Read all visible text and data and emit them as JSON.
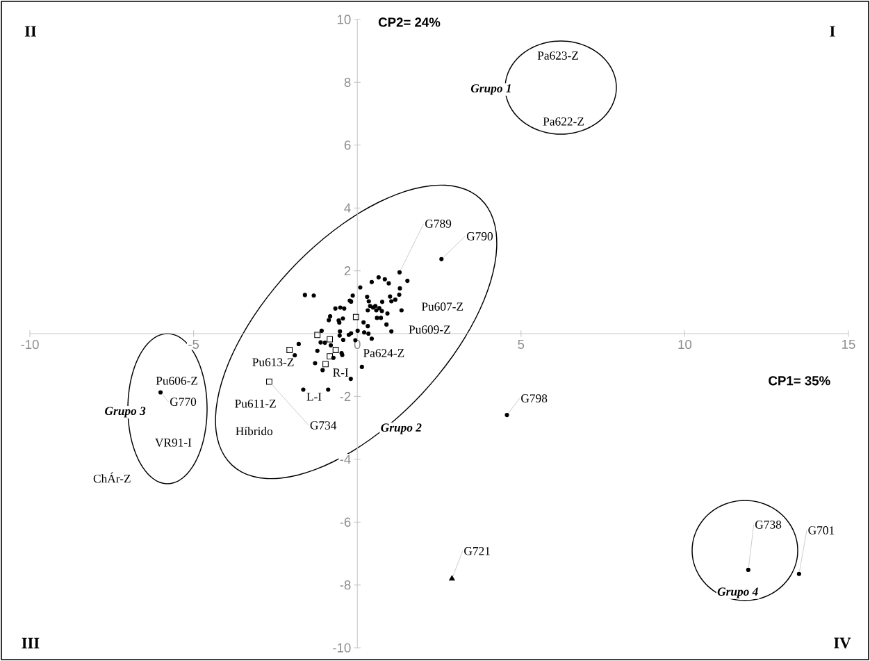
{
  "chart_data": {
    "type": "scatter",
    "xlabel": "CP1= 35%",
    "ylabel": "CP2= 24%",
    "xlim": [
      -10,
      15
    ],
    "ylim": [
      -10,
      10
    ],
    "xticks": [
      -10,
      -5,
      0,
      5,
      10,
      15
    ],
    "yticks": [
      -10,
      -8,
      -6,
      -4,
      -2,
      2,
      4,
      6,
      8,
      10
    ],
    "series": [
      {
        "color": "#000000",
        "marker": "circle",
        "x": [
          1.29,
          2.57,
          -1.6,
          -1.33,
          0.09,
          -0.14,
          -0.23,
          -0.19,
          -0.67,
          -0.52,
          -0.4,
          -0.83,
          -0.87,
          -0.57,
          -0.44,
          -0.55,
          0.44,
          0.65,
          0.84,
          0.96,
          1.53,
          1.3,
          1.28,
          0.3,
          0.35,
          0.76,
          1.0,
          1.04,
          1.16,
          0.39,
          0.48,
          0.55,
          0.67,
          0.75,
          0.58,
          0.32,
          0.92,
          0.6,
          0.72,
          0.89,
          1.35,
          1.04,
          0.19,
          0.32,
          0.01,
          0.21,
          0.34,
          0.44,
          -0.06,
          -0.19,
          -0.26,
          -0.43,
          -0.53,
          -0.54,
          -1.09,
          -1.12,
          -0.99,
          -1.79,
          -1.91,
          -1.22,
          -0.81,
          -0.48,
          -0.46,
          -0.73,
          -1.29,
          -1.06,
          0.14,
          -0.2,
          -1.65,
          -0.89,
          -6.01,
          4.57,
          11.94,
          13.49
        ],
        "values": [
          1.95,
          2.37,
          1.23,
          1.21,
          1.47,
          1.21,
          1.05,
          1.02,
          0.8,
          0.83,
          0.8,
          0.55,
          0.43,
          0.42,
          0.48,
          0.35,
          1.64,
          1.79,
          1.73,
          1.6,
          1.68,
          1.44,
          1.24,
          1.17,
          1.03,
          1.01,
          1.18,
          1.03,
          1.08,
          0.88,
          0.83,
          0.88,
          0.81,
          0.72,
          0.74,
          0.74,
          0.64,
          0.5,
          0.5,
          0.29,
          0.74,
          0.07,
          0.36,
          0.24,
          0.09,
          0.04,
          0.0,
          -0.16,
          -0.21,
          0.01,
          -0.04,
          -0.2,
          0.07,
          -0.06,
          0.09,
          -0.28,
          -0.29,
          -0.33,
          -0.69,
          -0.55,
          -0.37,
          -0.62,
          -0.68,
          -0.77,
          -0.94,
          -1.16,
          -1.06,
          -1.44,
          -1.78,
          -1.78,
          -1.87,
          -2.59,
          -7.52,
          -7.65
        ]
      },
      {
        "color": "#000000",
        "marker": "square",
        "x": [
          -0.04,
          -1.22,
          -0.84,
          -0.66,
          -0.84,
          -0.97,
          -2.07,
          -2.69
        ],
        "values": [
          0.53,
          -0.04,
          -0.18,
          -0.52,
          -0.72,
          -0.97,
          -0.52,
          -1.53
        ]
      },
      {
        "color": "#000000",
        "marker": "triangle",
        "x": [
          2.89
        ],
        "values": [
          -7.8
        ]
      }
    ],
    "annotations": [
      "Pa623-Z",
      "Pa622-Z",
      "Grupo 1",
      {
        "text": "G789",
        "x": 1.29,
        "y": 1.95
      },
      {
        "text": "G790",
        "x": 2.57,
        "y": 2.37
      },
      {
        "text": "Pu607-Z",
        "x": 1.35,
        "y": 0.74
      },
      {
        "text": "Pu609-Z",
        "x": 1.04,
        "y": 0.07
      },
      "Pa624-Z",
      "Pu613-Z",
      "R-I",
      "L-I",
      "Pu611-Z",
      "Híbrido",
      {
        "text": "G734",
        "x": -2.69,
        "y": -1.53
      },
      "Grupo 2",
      "Pu606-Z",
      {
        "text": "G770",
        "x": -6.01,
        "y": -1.87
      },
      "VR91-I",
      "ChÁr-Z",
      "Grupo 3",
      {
        "text": "G798",
        "x": 4.57,
        "y": -2.59
      },
      {
        "text": "G738",
        "x": 11.94,
        "y": -7.52
      },
      {
        "text": "G701",
        "x": 13.49,
        "y": -7.65
      },
      "Grupo 4",
      {
        "text": "G721",
        "x": 2.89,
        "y": -7.8
      },
      "I",
      "II",
      "III",
      "IV"
    ]
  }
}
